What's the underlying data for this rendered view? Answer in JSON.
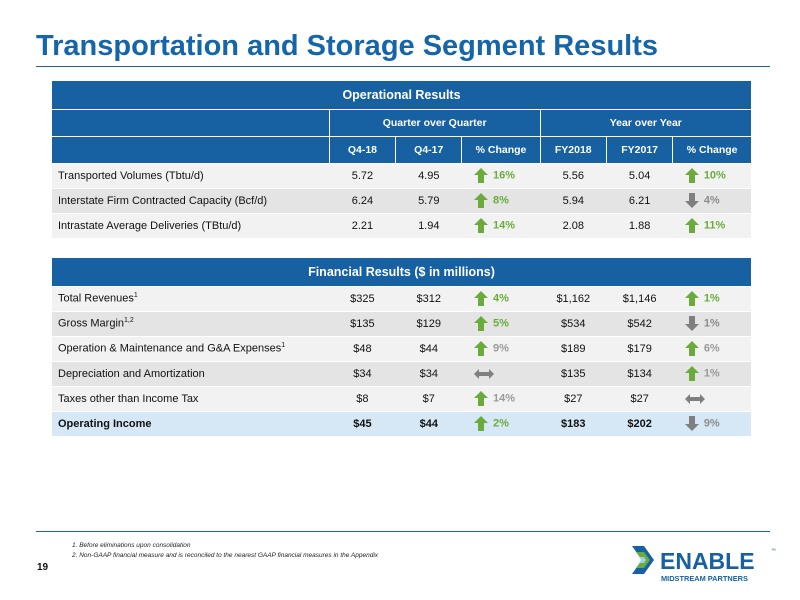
{
  "title": "Transportation and Storage Segment Results",
  "operational": {
    "heading": "Operational Results",
    "group_qoq": "Quarter over Quarter",
    "group_yoy": "Year over Year",
    "cols": [
      "Q4-18",
      "Q4-17",
      "% Change",
      "FY2018",
      "FY2017",
      "% Change"
    ],
    "rows": [
      {
        "label": "Transported Volumes (Tbtu/d)",
        "q418": "5.72",
        "q417": "4.95",
        "qchg": "16%",
        "qdir": "up",
        "fy18": "5.56",
        "fy17": "5.04",
        "fchg": "10%",
        "fdir": "up"
      },
      {
        "label": "Interstate Firm Contracted Capacity (Bcf/d)",
        "q418": "6.24",
        "q417": "5.79",
        "qchg": "8%",
        "qdir": "up",
        "fy18": "5.94",
        "fy17": "6.21",
        "fchg": "4%",
        "fdir": "down"
      },
      {
        "label": "Intrastate Average Deliveries (TBtu/d)",
        "q418": "2.21",
        "q417": "1.94",
        "qchg": "14%",
        "qdir": "up",
        "fy18": "2.08",
        "fy17": "1.88",
        "fchg": "11%",
        "fdir": "up"
      }
    ]
  },
  "financial": {
    "heading": "Financial Results ($ in millions)",
    "rows": [
      {
        "label": "Total Revenues",
        "sup": "1",
        "q418": "$325",
        "q417": "$312",
        "qchg": "4%",
        "qdir": "up",
        "fy18": "$1,162",
        "fy17": "$1,146",
        "fchg": "1%",
        "fdir": "up"
      },
      {
        "label": "Gross Margin",
        "sup": "1,2",
        "q418": "$135",
        "q417": "$129",
        "qchg": "5%",
        "qdir": "up",
        "fy18": "$534",
        "fy17": "$542",
        "fchg": "1%",
        "fdir": "down"
      },
      {
        "label": "Operation & Maintenance and G&A Expenses",
        "sup": "1",
        "q418": "$48",
        "q417": "$44",
        "qchg": "9%",
        "qdir": "uplight",
        "fy18": "$189",
        "fy17": "$179",
        "fchg": "6%",
        "fdir": "uplight"
      },
      {
        "label": "Depreciation and Amortization",
        "sup": "",
        "q418": "$34",
        "q417": "$34",
        "qchg": "",
        "qdir": "flat",
        "fy18": "$135",
        "fy17": "$134",
        "fchg": "1%",
        "fdir": "uplight"
      },
      {
        "label": "Taxes other than Income Tax",
        "sup": "",
        "q418": "$8",
        "q417": "$7",
        "qchg": "14%",
        "qdir": "uplight",
        "fy18": "$27",
        "fy17": "$27",
        "fchg": "",
        "fdir": "flat"
      },
      {
        "label": "Operating Income",
        "sup": "",
        "q418": "$45",
        "q417": "$44",
        "qchg": "2%",
        "qdir": "up",
        "fy18": "$183",
        "fy17": "$202",
        "fchg": "9%",
        "fdir": "down",
        "total": true
      }
    ]
  },
  "footnotes": [
    "1. Before eliminations upon consolidation",
    "2. Non-GAAP financial measure and is reconciled to the nearest GAAP financial measures in the Appendix"
  ],
  "page_number": "19",
  "logo": {
    "name": "ENABLE",
    "tagline": "MIDSTREAM PARTNERS",
    "tm": "™"
  },
  "colors": {
    "brand_blue": "#1761a2",
    "up_green": "#6aab3c",
    "down_gray": "#8c8c8c"
  }
}
